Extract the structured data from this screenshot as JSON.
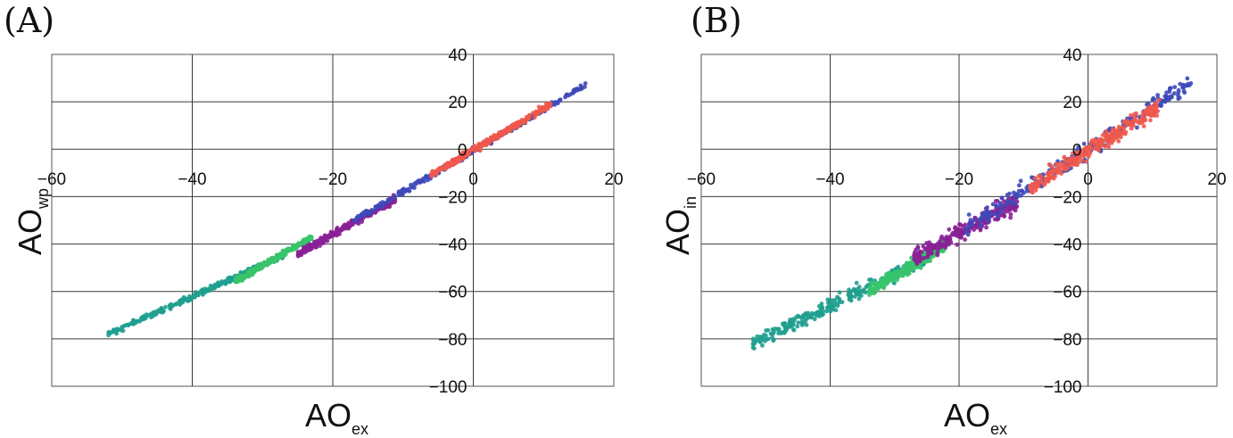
{
  "chart_data": [
    {
      "type": "scatter",
      "panel_label": "(A)",
      "xlabel": "AO",
      "xlabel_sub": "ex",
      "ylabel": "AO",
      "ylabel_sub": "wp",
      "xlim": [
        -60,
        20
      ],
      "ylim": [
        -100,
        40
      ],
      "x_ticks": [
        "−60",
        "−40",
        "−20",
        "0",
        "20"
      ],
      "y_ticks": [
        "40",
        "20",
        "0",
        "−20",
        "−40",
        "−60",
        "−80",
        "−100"
      ],
      "grid": true,
      "series": [
        {
          "name": "teal",
          "color": "#1f9f8f",
          "x_range": [
            -52,
            -27
          ],
          "y_at_start": -78,
          "y_at_end": -45,
          "spread": 1.2
        },
        {
          "name": "green",
          "color": "#37c46a",
          "x_range": [
            -34,
            -23
          ],
          "y_at_start": -56,
          "y_at_end": -37,
          "spread": 1.0
        },
        {
          "name": "purple",
          "color": "#8a2096",
          "x_range": [
            -25,
            -11
          ],
          "y_at_start": -44,
          "y_at_end": -21,
          "spread": 1.5
        },
        {
          "name": "blue",
          "color": "#3e49b8",
          "x_range": [
            -17,
            16
          ],
          "y_at_start": -30,
          "y_at_end": 27,
          "spread": 1.2
        },
        {
          "name": "red",
          "color": "#f0594c",
          "x_range": [
            -6,
            11
          ],
          "y_at_start": -11,
          "y_at_end": 19,
          "spread": 1.2
        }
      ]
    },
    {
      "type": "scatter",
      "panel_label": "(B)",
      "xlabel": "AO",
      "xlabel_sub": "ex",
      "ylabel": "AO",
      "ylabel_sub": "in",
      "xlim": [
        -60,
        20
      ],
      "ylim": [
        -100,
        40
      ],
      "x_ticks": [
        "−60",
        "−40",
        "−20",
        "0",
        "20"
      ],
      "y_ticks": [
        "40",
        "20",
        "0",
        "−20",
        "−40",
        "−60",
        "−80",
        "−100"
      ],
      "grid": true,
      "series": [
        {
          "name": "teal",
          "color": "#1f9f8f",
          "x_range": [
            -52,
            -25
          ],
          "y_at_start": -82,
          "y_at_end": -46,
          "spread": 3.0
        },
        {
          "name": "green",
          "color": "#37c46a",
          "x_range": [
            -34,
            -22
          ],
          "y_at_start": -60,
          "y_at_end": -40,
          "spread": 2.5
        },
        {
          "name": "purple",
          "color": "#8a2096",
          "x_range": [
            -27,
            -11
          ],
          "y_at_start": -46,
          "y_at_end": -22,
          "spread": 3.5
        },
        {
          "name": "blue",
          "color": "#3e49b8",
          "x_range": [
            -19,
            16
          ],
          "y_at_start": -33,
          "y_at_end": 28,
          "spread": 3.5
        },
        {
          "name": "red",
          "color": "#f0594c",
          "x_range": [
            -9,
            11
          ],
          "y_at_start": -16,
          "y_at_end": 18,
          "spread": 3.5
        }
      ]
    }
  ]
}
